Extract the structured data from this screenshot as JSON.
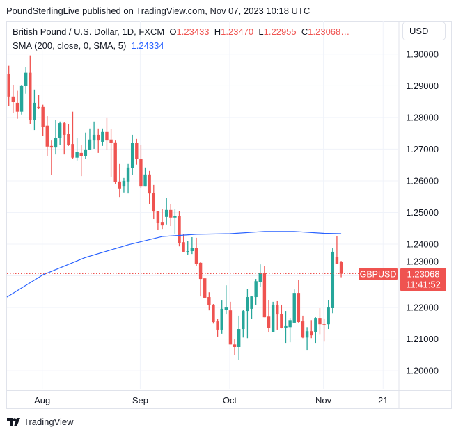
{
  "published": "PoundSterlingLive published on TradingView.com, Nov 07, 2023 10:18 UTC",
  "legend": {
    "symbol": "British Pound / U.S. Dollar, 1D, FXCM",
    "o_label": "O",
    "o": "1.23433",
    "h_label": "H",
    "h": "1.23470",
    "l_label": "L",
    "l": "1.22955",
    "c_label": "C",
    "c": "1.23068…",
    "sma_label": "SMA (200, close, 0, SMA, 5)",
    "sma_value": "1.24334"
  },
  "currency_button": "USD",
  "symbol_tag": "GBPUSD",
  "last_price": "1.23068",
  "countdown": "11:41:52",
  "logo_text": "TradingView",
  "colors": {
    "up": "#26a69a",
    "down": "#ef5350",
    "sma": "#2962ff",
    "grid": "#f0f3fa"
  },
  "chart_data": {
    "type": "candlestick",
    "price_ticks": [
      "1.30000",
      "1.29000",
      "1.28000",
      "1.27000",
      "1.26000",
      "1.25000",
      "1.24000",
      "1.23000",
      "1.22000",
      "1.21000",
      "1.20000"
    ],
    "time_ticks": [
      {
        "label": "Aug",
        "candle": 9
      },
      {
        "label": "Sep",
        "candle": 32
      },
      {
        "label": "Oct",
        "candle": 53
      },
      {
        "label": "Nov",
        "candle": 75
      },
      {
        "label": "21",
        "candle": 89
      }
    ],
    "ylim": [
      1.1941,
      1.3105
    ],
    "ohlc": [
      [
        1.2938,
        1.2963,
        1.2837,
        1.2866
      ],
      [
        1.2866,
        1.2903,
        1.2815,
        1.2848
      ],
      [
        1.2846,
        1.2884,
        1.2796,
        1.2818
      ],
      [
        1.2818,
        1.2903,
        1.2809,
        1.2901
      ],
      [
        1.2899,
        1.2958,
        1.2875,
        1.2941
      ],
      [
        1.2941,
        1.2996,
        1.278,
        1.2793
      ],
      [
        1.2793,
        1.2888,
        1.276,
        1.2846
      ],
      [
        1.2833,
        1.287,
        1.2826,
        1.2831
      ],
      [
        1.2833,
        1.284,
        1.2741,
        1.2771
      ],
      [
        1.2774,
        1.2804,
        1.2679,
        1.2708
      ],
      [
        1.271,
        1.2727,
        1.2618,
        1.2705
      ],
      [
        1.2705,
        1.2791,
        1.2683,
        1.2736
      ],
      [
        1.2734,
        1.2787,
        1.2712,
        1.2782
      ],
      [
        1.2782,
        1.2785,
        1.2683,
        1.2745
      ],
      [
        1.2747,
        1.278,
        1.271,
        1.2714
      ],
      [
        1.2716,
        1.2818,
        1.2668,
        1.2673
      ],
      [
        1.2673,
        1.2736,
        1.2664,
        1.269
      ],
      [
        1.2688,
        1.2714,
        1.2615,
        1.2677
      ],
      [
        1.2677,
        1.2752,
        1.267,
        1.2699
      ],
      [
        1.2697,
        1.2765,
        1.2697,
        1.273
      ],
      [
        1.2727,
        1.2787,
        1.2701,
        1.2745
      ],
      [
        1.2745,
        1.2765,
        1.2688,
        1.2727
      ],
      [
        1.2723,
        1.2765,
        1.271,
        1.2754
      ],
      [
        1.2754,
        1.28,
        1.2697,
        1.2727
      ],
      [
        1.273,
        1.2763,
        1.2613,
        1.2719
      ],
      [
        1.2721,
        1.2727,
        1.2591,
        1.2596
      ],
      [
        1.2598,
        1.2653,
        1.2549,
        1.2574
      ],
      [
        1.2582,
        1.2609,
        1.2563,
        1.26
      ],
      [
        1.2598,
        1.2653,
        1.256,
        1.2642
      ],
      [
        1.264,
        1.2745,
        1.2618,
        1.2719
      ],
      [
        1.2719,
        1.2732,
        1.2651,
        1.2668
      ],
      [
        1.267,
        1.2712,
        1.2578,
        1.2582
      ],
      [
        1.2582,
        1.2642,
        1.2582,
        1.262
      ],
      [
        1.262,
        1.2631,
        1.2527,
        1.256
      ],
      [
        1.2562,
        1.2587,
        1.2479,
        1.2503
      ],
      [
        1.2505,
        1.2505,
        1.2444,
        1.2468
      ],
      [
        1.247,
        1.2512,
        1.2448,
        1.2459
      ],
      [
        1.2486,
        1.2547,
        1.2462,
        1.2508
      ],
      [
        1.2508,
        1.2527,
        1.2457,
        1.2484
      ],
      [
        1.2484,
        1.251,
        1.2431,
        1.2488
      ],
      [
        1.2488,
        1.2505,
        1.2393,
        1.2404
      ],
      [
        1.2406,
        1.2431,
        1.2376,
        1.2376
      ],
      [
        1.2377,
        1.2409,
        1.2367,
        1.2378
      ],
      [
        1.2378,
        1.2422,
        1.2369,
        1.2389
      ],
      [
        1.2389,
        1.242,
        1.233,
        1.2338
      ],
      [
        1.2341,
        1.2345,
        1.2235,
        1.229
      ],
      [
        1.2292,
        1.2292,
        1.2229,
        1.2231
      ],
      [
        1.2233,
        1.2248,
        1.2191,
        1.2207
      ],
      [
        1.2209,
        1.2211,
        1.2149,
        1.2154
      ],
      [
        1.2156,
        1.2163,
        1.2108,
        1.213
      ],
      [
        1.213,
        1.2222,
        1.2117,
        1.2196
      ],
      [
        1.2193,
        1.227,
        1.2178,
        1.22
      ],
      [
        1.2191,
        1.2218,
        1.2083,
        1.2083
      ],
      [
        1.2083,
        1.2099,
        1.205,
        1.2075
      ],
      [
        1.2075,
        1.2174,
        1.2035,
        1.2132
      ],
      [
        1.2132,
        1.2193,
        1.2105,
        1.2189
      ],
      [
        1.2189,
        1.2259,
        1.2103,
        1.2233
      ],
      [
        1.2196,
        1.2235,
        1.2163,
        1.2235
      ],
      [
        1.2233,
        1.229,
        1.2209,
        1.2283
      ],
      [
        1.2281,
        1.2336,
        1.2266,
        1.231
      ],
      [
        1.231,
        1.233,
        1.2169,
        1.2169
      ],
      [
        1.2171,
        1.2224,
        1.2121,
        1.2136
      ],
      [
        1.2123,
        1.2218,
        1.2123,
        1.2209
      ],
      [
        1.2209,
        1.222,
        1.213,
        1.2178
      ],
      [
        1.218,
        1.2209,
        1.2134,
        1.2136
      ],
      [
        1.2136,
        1.2189,
        1.2088,
        1.2141
      ],
      [
        1.2138,
        1.2167,
        1.209,
        1.216
      ],
      [
        1.2152,
        1.2257,
        1.2152,
        1.2246
      ],
      [
        1.2246,
        1.2286,
        1.2152,
        1.2154
      ],
      [
        1.2156,
        1.2174,
        1.2103,
        1.2105
      ],
      [
        1.2105,
        1.2138,
        1.2066,
        1.2125
      ],
      [
        1.2125,
        1.216,
        1.2103,
        1.2112
      ],
      [
        1.2123,
        1.2169,
        1.2088,
        1.2167
      ],
      [
        1.2167,
        1.2198,
        1.2116,
        1.2147
      ],
      [
        1.2147,
        1.2163,
        1.2092,
        1.2146
      ],
      [
        1.2147,
        1.2224,
        1.2132,
        1.22
      ],
      [
        1.2198,
        1.2387,
        1.2182,
        1.2376
      ],
      [
        1.236,
        1.2426,
        1.2337,
        1.2338
      ],
      [
        1.23433,
        1.2347,
        1.22955,
        1.23068
      ]
    ],
    "sma": [
      [
        1,
        1.2233
      ],
      [
        9,
        1.2303
      ],
      [
        19,
        1.2358
      ],
      [
        29,
        1.2398
      ],
      [
        37,
        1.2424
      ],
      [
        45,
        1.2431
      ],
      [
        53,
        1.2433
      ],
      [
        61,
        1.244
      ],
      [
        68,
        1.244
      ],
      [
        75,
        1.2434
      ],
      [
        79,
        1.2433
      ]
    ],
    "last_close": 1.23068
  }
}
